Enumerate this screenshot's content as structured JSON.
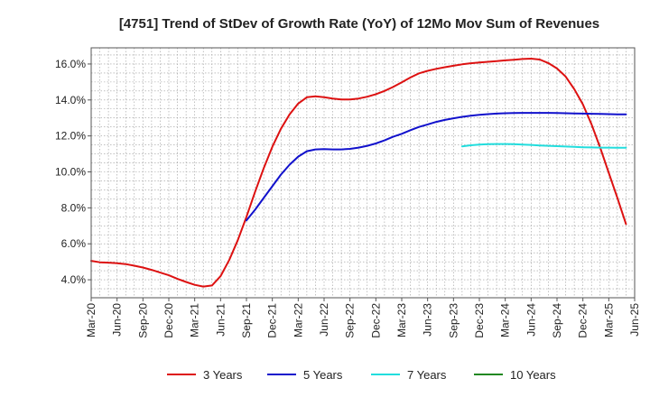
{
  "chart_data": {
    "type": "line",
    "title": "[4751]  Trend of StDev of Growth Rate (YoY) of 12Mo Mov Sum of Revenues",
    "xlabel": "",
    "ylabel": "",
    "x_tick_labels": [
      "Mar-20",
      "Jun-20",
      "Sep-20",
      "Dec-20",
      "Mar-21",
      "Jun-21",
      "Sep-21",
      "Dec-21",
      "Mar-22",
      "Jun-22",
      "Sep-22",
      "Dec-22",
      "Mar-23",
      "Jun-23",
      "Sep-23",
      "Dec-23",
      "Mar-24",
      "Jun-24",
      "Sep-24",
      "Dec-24",
      "Mar-25",
      "Jun-25"
    ],
    "y_tick_labels": [
      "4.0%",
      "6.0%",
      "8.0%",
      "10.0%",
      "12.0%",
      "14.0%",
      "16.0%"
    ],
    "y_ticks": [
      4,
      6,
      8,
      10,
      12,
      14,
      16
    ],
    "ylim": [
      3.0,
      16.9
    ],
    "x_index_range": [
      0,
      63
    ],
    "grid": true,
    "legend_position": "bottom",
    "colors": {
      "3y": "#dd1111",
      "5y": "#1111cc",
      "7y": "#22dddd",
      "10y": "#228822"
    },
    "series": [
      {
        "name": "3 Years",
        "key": "3y",
        "start_index": 0,
        "values": [
          5.05,
          4.97,
          4.95,
          4.92,
          4.87,
          4.78,
          4.68,
          4.55,
          4.4,
          4.25,
          4.05,
          3.88,
          3.72,
          3.62,
          3.68,
          4.2,
          5.1,
          6.2,
          7.5,
          8.9,
          10.2,
          11.4,
          12.4,
          13.2,
          13.8,
          14.15,
          14.2,
          14.15,
          14.08,
          14.03,
          14.03,
          14.08,
          14.18,
          14.32,
          14.5,
          14.72,
          14.98,
          15.25,
          15.48,
          15.62,
          15.73,
          15.82,
          15.9,
          15.98,
          16.04,
          16.08,
          16.12,
          16.16,
          16.2,
          16.24,
          16.28,
          16.3,
          16.25,
          16.05,
          15.75,
          15.3,
          14.6,
          13.75,
          12.65,
          11.35,
          9.95,
          8.55,
          7.1
        ]
      },
      {
        "name": "5 Years",
        "key": "5y",
        "start_index": 18,
        "values": [
          7.3,
          7.9,
          8.55,
          9.2,
          9.85,
          10.4,
          10.85,
          11.15,
          11.25,
          11.27,
          11.25,
          11.25,
          11.28,
          11.35,
          11.45,
          11.58,
          11.75,
          11.95,
          12.12,
          12.32,
          12.5,
          12.64,
          12.78,
          12.89,
          12.98,
          13.06,
          13.12,
          13.17,
          13.21,
          13.24,
          13.26,
          13.27,
          13.28,
          13.28,
          13.28,
          13.28,
          13.27,
          13.26,
          13.25,
          13.24,
          13.23,
          13.22,
          13.21,
          13.2,
          13.2
        ]
      },
      {
        "name": "7 Years",
        "key": "7y",
        "start_index": 43,
        "values": [
          11.42,
          11.48,
          11.52,
          11.54,
          11.55,
          11.55,
          11.54,
          11.52,
          11.5,
          11.47,
          11.45,
          11.43,
          11.41,
          11.39,
          11.37,
          11.36,
          11.35,
          11.35,
          11.34,
          11.34
        ]
      },
      {
        "name": "10 Years",
        "key": "10y",
        "start_index": 0,
        "values": []
      }
    ]
  }
}
